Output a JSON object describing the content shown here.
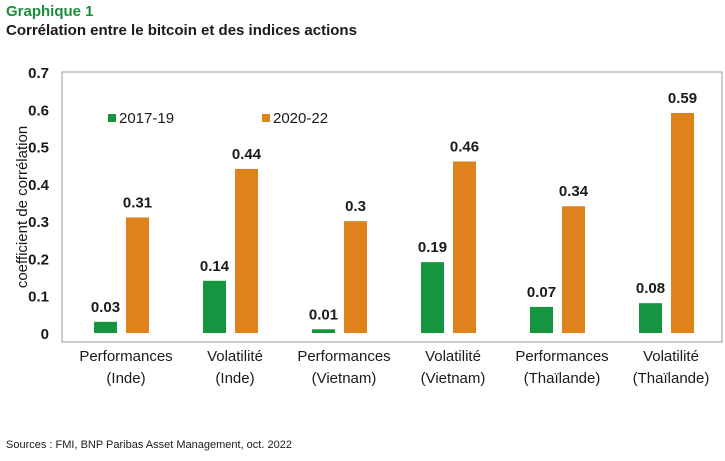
{
  "header": {
    "kicker": "Graphique 1",
    "title": "Corrélation entre le bitcoin et des indices actions"
  },
  "footer": {
    "source": "Sources : FMI, BNP Paribas Asset Management, oct. 2022"
  },
  "colors": {
    "series_2017_19": "#15953f",
    "series_2020_22": "#e0821c",
    "kicker": "#1b8e3b",
    "frame": "#9a9a9a"
  },
  "chart_data": {
    "type": "bar",
    "title": "Corrélation entre le bitcoin et des indices actions",
    "ylabel": "coefficient de corrélation",
    "xlabel": "",
    "ylim": [
      0,
      0.7
    ],
    "yticks": [
      "0",
      "0.1",
      "0.2",
      "0.3",
      "0.4",
      "0.5",
      "0.6",
      "0.7"
    ],
    "categories": [
      [
        "Performances",
        "(Inde)"
      ],
      [
        "Volatilité",
        "(Inde)"
      ],
      [
        "Performances",
        "(Vietnam)"
      ],
      [
        "Volatilité",
        "(Vietnam)"
      ],
      [
        "Performances",
        "(Thaïlande)"
      ],
      [
        "Volatilité",
        "(Thaïlande)"
      ]
    ],
    "series": [
      {
        "name": "2017-19",
        "values": [
          0.03,
          0.14,
          0.01,
          0.19,
          0.07,
          0.08
        ],
        "labels": [
          "0.03",
          "0.14",
          "0.01",
          "0.19",
          "0.07",
          "0.08"
        ]
      },
      {
        "name": "2020-22",
        "values": [
          0.31,
          0.44,
          0.3,
          0.46,
          0.34,
          0.59
        ],
        "labels": [
          "0.31",
          "0.44",
          "0.3",
          "0.46",
          "0.34",
          "0.59"
        ]
      }
    ],
    "grid": false,
    "legend": "top-left"
  }
}
